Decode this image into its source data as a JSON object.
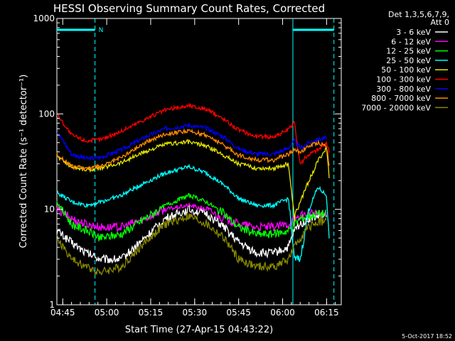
{
  "chart_data": {
    "type": "line",
    "title": "HESSI Observing Summary Count Rates, Corrected",
    "xlabel": "Start Time (27-Apr-15 04:43:22)",
    "ylabel": "Corrected Count Rate (s⁻¹ detector⁻¹)",
    "yscale": "log",
    "ylim": [
      1,
      1000
    ],
    "xlim_minutes": [
      0,
      97
    ],
    "x_ticks": [
      {
        "t": 2,
        "label": "04:45"
      },
      {
        "t": 17,
        "label": "05:00"
      },
      {
        "t": 32,
        "label": "05:15"
      },
      {
        "t": 47,
        "label": "05:30"
      },
      {
        "t": 62,
        "label": "05:45"
      },
      {
        "t": 77,
        "label": "06:00"
      },
      {
        "t": 92,
        "label": "06:15"
      }
    ],
    "y_ticks": [
      {
        "v": 1,
        "label": "1"
      },
      {
        "v": 10,
        "label": "10"
      },
      {
        "v": 100,
        "label": "100"
      },
      {
        "v": 1000,
        "label": "1000"
      }
    ],
    "legend_header": [
      "Det 1,3,5,6,7,9,",
      "Att 0"
    ],
    "legend_placement": "right",
    "series": [
      {
        "name": "3 - 6 keV",
        "color": "#ffffff",
        "values": [
          [
            0,
            6
          ],
          [
            5,
            4.5
          ],
          [
            10,
            3.5
          ],
          [
            15,
            3
          ],
          [
            22,
            3
          ],
          [
            30,
            5
          ],
          [
            37,
            8
          ],
          [
            45,
            10
          ],
          [
            51,
            9
          ],
          [
            57,
            6.5
          ],
          [
            62,
            4.5
          ],
          [
            68,
            3.5
          ],
          [
            74,
            3.5
          ],
          [
            79,
            4
          ],
          [
            81,
            6
          ],
          [
            83,
            7
          ],
          [
            86,
            8
          ],
          [
            89,
            8.5
          ],
          [
            92,
            8.5
          ]
        ]
      },
      {
        "name": "6 - 12 keV",
        "color": "#ff00ff",
        "values": [
          [
            0,
            10
          ],
          [
            5,
            8
          ],
          [
            10,
            7
          ],
          [
            15,
            6.5
          ],
          [
            22,
            6.5
          ],
          [
            30,
            8
          ],
          [
            37,
            10
          ],
          [
            45,
            11
          ],
          [
            51,
            10
          ],
          [
            57,
            8
          ],
          [
            62,
            7
          ],
          [
            68,
            6.5
          ],
          [
            74,
            6.5
          ],
          [
            79,
            7
          ],
          [
            81,
            8
          ],
          [
            83,
            8.5
          ],
          [
            86,
            9
          ],
          [
            89,
            9
          ],
          [
            92,
            9
          ]
        ]
      },
      {
        "name": "12 - 25 keV",
        "color": "#00ff00",
        "values": [
          [
            0,
            12
          ],
          [
            5,
            7
          ],
          [
            10,
            6
          ],
          [
            15,
            5
          ],
          [
            22,
            5.5
          ],
          [
            30,
            8
          ],
          [
            37,
            11
          ],
          [
            45,
            14
          ],
          [
            51,
            12
          ],
          [
            57,
            9
          ],
          [
            62,
            6.5
          ],
          [
            68,
            5.5
          ],
          [
            74,
            5.5
          ],
          [
            79,
            6
          ],
          [
            81,
            7
          ],
          [
            83,
            8
          ],
          [
            86,
            8.5
          ],
          [
            89,
            9
          ],
          [
            92,
            9
          ]
        ]
      },
      {
        "name": "25 - 50 keV",
        "color": "#00ffff",
        "values": [
          [
            0,
            15
          ],
          [
            5,
            12
          ],
          [
            10,
            11
          ],
          [
            15,
            12
          ],
          [
            22,
            14
          ],
          [
            30,
            19
          ],
          [
            37,
            24
          ],
          [
            45,
            28
          ],
          [
            51,
            24
          ],
          [
            57,
            18
          ],
          [
            62,
            13
          ],
          [
            68,
            11
          ],
          [
            74,
            11
          ],
          [
            79,
            13
          ],
          [
            81,
            3
          ],
          [
            83,
            3
          ],
          [
            86,
            10
          ],
          [
            89,
            17
          ],
          [
            92,
            14
          ],
          [
            93,
            4
          ]
        ]
      },
      {
        "name": "50 - 100 keV",
        "color": "#e6e600",
        "values": [
          [
            0,
            36
          ],
          [
            5,
            28
          ],
          [
            10,
            26
          ],
          [
            15,
            27
          ],
          [
            22,
            31
          ],
          [
            30,
            40
          ],
          [
            37,
            48
          ],
          [
            45,
            51
          ],
          [
            51,
            46
          ],
          [
            57,
            37
          ],
          [
            62,
            30
          ],
          [
            68,
            27
          ],
          [
            74,
            27
          ],
          [
            79,
            30
          ],
          [
            81,
            8
          ],
          [
            83,
            12
          ],
          [
            86,
            20
          ],
          [
            89,
            32
          ],
          [
            92,
            44
          ],
          [
            93,
            20
          ]
        ]
      },
      {
        "name": "100 - 300 keV",
        "color": "#ff0000",
        "values": [
          [
            0,
            100
          ],
          [
            5,
            60
          ],
          [
            10,
            52
          ],
          [
            15,
            54
          ],
          [
            22,
            66
          ],
          [
            30,
            88
          ],
          [
            37,
            110
          ],
          [
            45,
            122
          ],
          [
            51,
            112
          ],
          [
            57,
            88
          ],
          [
            62,
            68
          ],
          [
            68,
            58
          ],
          [
            74,
            58
          ],
          [
            79,
            68
          ],
          [
            81,
            82
          ],
          [
            83,
            30
          ],
          [
            86,
            38
          ],
          [
            89,
            42
          ],
          [
            92,
            50
          ],
          [
            93,
            38
          ]
        ]
      },
      {
        "name": "300 - 800 keV",
        "color": "#0000ff",
        "values": [
          [
            0,
            66
          ],
          [
            5,
            38
          ],
          [
            10,
            34
          ],
          [
            15,
            35
          ],
          [
            22,
            42
          ],
          [
            30,
            57
          ],
          [
            37,
            70
          ],
          [
            45,
            76
          ],
          [
            51,
            71
          ],
          [
            57,
            57
          ],
          [
            62,
            43
          ],
          [
            68,
            38
          ],
          [
            74,
            38
          ],
          [
            79,
            44
          ],
          [
            81,
            52
          ],
          [
            83,
            44
          ],
          [
            86,
            50
          ],
          [
            89,
            54
          ],
          [
            92,
            56
          ]
        ]
      },
      {
        "name": "800 - 7000 keV",
        "color": "#ff8800",
        "values": [
          [
            0,
            38
          ],
          [
            5,
            28
          ],
          [
            10,
            27
          ],
          [
            15,
            28
          ],
          [
            22,
            35
          ],
          [
            30,
            50
          ],
          [
            37,
            62
          ],
          [
            45,
            66
          ],
          [
            51,
            60
          ],
          [
            57,
            47
          ],
          [
            62,
            37
          ],
          [
            68,
            33
          ],
          [
            74,
            33
          ],
          [
            79,
            38
          ],
          [
            81,
            42
          ],
          [
            83,
            40
          ],
          [
            86,
            46
          ],
          [
            89,
            50
          ],
          [
            92,
            46
          ],
          [
            93,
            28
          ]
        ]
      },
      {
        "name": "7000 - 20000 keV",
        "color": "#888800",
        "values": [
          [
            0,
            5
          ],
          [
            5,
            3
          ],
          [
            10,
            2.5
          ],
          [
            15,
            2.2
          ],
          [
            22,
            2.5
          ],
          [
            30,
            4.5
          ],
          [
            37,
            7
          ],
          [
            45,
            8.5
          ],
          [
            51,
            7
          ],
          [
            57,
            5
          ],
          [
            62,
            3
          ],
          [
            68,
            2.5
          ],
          [
            74,
            2.5
          ],
          [
            79,
            3
          ],
          [
            81,
            4
          ],
          [
            83,
            5
          ],
          [
            86,
            6.5
          ],
          [
            89,
            7.5
          ],
          [
            92,
            7.5
          ]
        ]
      }
    ],
    "flags": [
      {
        "label": "N",
        "t_start": 0,
        "t_end": 13
      }
    ],
    "vertical_markers": [
      {
        "t": 13,
        "style": "dashed"
      },
      {
        "t": 80.5,
        "style": "solid"
      },
      {
        "t": 94.5,
        "style": "dashed"
      }
    ],
    "grid": false
  },
  "timestamp": "5-Oct-2017 18:52",
  "colors": {
    "background": "#000000",
    "axes": "#ffffff",
    "marker": "#00ffff"
  }
}
